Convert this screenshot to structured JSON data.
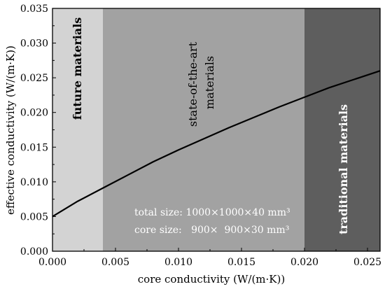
{
  "chart_data": {
    "type": "line",
    "xlabel": "core conductivity (W/(m·K))",
    "ylabel": "effective conductivity (W/(m·K))",
    "xlim": [
      0.0,
      0.026
    ],
    "ylim": [
      0.0,
      0.035
    ],
    "x_ticks": [
      "0.000",
      "0.005",
      "0.010",
      "0.015",
      "0.020",
      "0.025"
    ],
    "y_ticks": [
      "0.000",
      "0.005",
      "0.010",
      "0.015",
      "0.020",
      "0.025",
      "0.030",
      "0.035"
    ],
    "grid": false,
    "regions": [
      {
        "label": "future materials",
        "x_range": [
          0.0,
          0.004
        ],
        "color": "#d3d3d3"
      },
      {
        "label": "state-of-the-art materials",
        "x_range": [
          0.004,
          0.02
        ],
        "color": "#a2a2a2"
      },
      {
        "label": "traditional materials",
        "x_range": [
          0.02,
          0.026
        ],
        "color": "#5e5e5e"
      }
    ],
    "series": [
      {
        "color": "#000000",
        "x": [
          0.0,
          0.002,
          0.004,
          0.006,
          0.008,
          0.01,
          0.012,
          0.014,
          0.016,
          0.018,
          0.02,
          0.022,
          0.024,
          0.026
        ],
        "y": [
          0.005,
          0.0072,
          0.0091,
          0.011,
          0.0129,
          0.0146,
          0.0162,
          0.0178,
          0.0193,
          0.0208,
          0.0222,
          0.0236,
          0.0248,
          0.026
        ]
      }
    ],
    "annotations": [
      "total size: 1000×1000×40 mm³",
      "core size:   900×  900×30 mm³"
    ]
  }
}
